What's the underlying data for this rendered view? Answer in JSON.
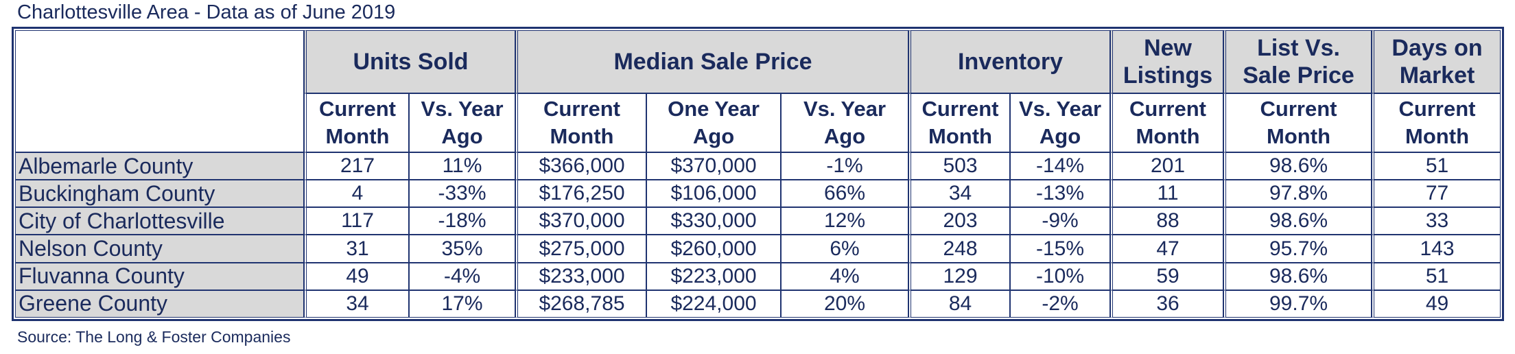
{
  "title": "Charlottesville Area - Data as of June 2019",
  "source": "Source: The Long & Foster Companies",
  "groups": {
    "units_sold": "Units Sold",
    "median_sale_price": "Median Sale Price",
    "inventory": "Inventory",
    "new_listings_1": "New",
    "new_listings_2": "Listings",
    "list_vs_sale_1": "List Vs.",
    "list_vs_sale_2": "Sale Price",
    "days_on_market_1": "Days on",
    "days_on_market_2": "Market"
  },
  "subheaders": {
    "current_1": "Current",
    "current_2": "Month",
    "vs_year_1": "Vs. Year",
    "vs_year_2": "Ago",
    "one_year_1": "One Year",
    "one_year_2": "Ago"
  },
  "rows": [
    {
      "area": "Albemarle County",
      "units_current": "217",
      "units_vs": "11%",
      "price_current": "$366,000",
      "price_year_ago": "$370,000",
      "price_vs": "-1%",
      "inv_current": "503",
      "inv_vs": "-14%",
      "new_listings": "201",
      "list_vs_sale": "98.6%",
      "dom": "51"
    },
    {
      "area": "Buckingham County",
      "units_current": "4",
      "units_vs": "-33%",
      "price_current": "$176,250",
      "price_year_ago": "$106,000",
      "price_vs": "66%",
      "inv_current": "34",
      "inv_vs": "-13%",
      "new_listings": "11",
      "list_vs_sale": "97.8%",
      "dom": "77"
    },
    {
      "area": "City of Charlottesville",
      "units_current": "117",
      "units_vs": "-18%",
      "price_current": "$370,000",
      "price_year_ago": "$330,000",
      "price_vs": "12%",
      "inv_current": "203",
      "inv_vs": "-9%",
      "new_listings": "88",
      "list_vs_sale": "98.6%",
      "dom": "33"
    },
    {
      "area": "Nelson County",
      "units_current": "31",
      "units_vs": "35%",
      "price_current": "$275,000",
      "price_year_ago": "$260,000",
      "price_vs": "6%",
      "inv_current": "248",
      "inv_vs": "-15%",
      "new_listings": "47",
      "list_vs_sale": "95.7%",
      "dom": "143"
    },
    {
      "area": "Fluvanna County",
      "units_current": "49",
      "units_vs": "-4%",
      "price_current": "$233,000",
      "price_year_ago": "$223,000",
      "price_vs": "4%",
      "inv_current": "129",
      "inv_vs": "-10%",
      "new_listings": "59",
      "list_vs_sale": "98.6%",
      "dom": "51"
    },
    {
      "area": "Greene County",
      "units_current": "34",
      "units_vs": "17%",
      "price_current": "$268,785",
      "price_year_ago": "$224,000",
      "price_vs": "20%",
      "inv_current": "84",
      "inv_vs": "-2%",
      "new_listings": "36",
      "list_vs_sale": "99.7%",
      "dom": "49"
    }
  ]
}
